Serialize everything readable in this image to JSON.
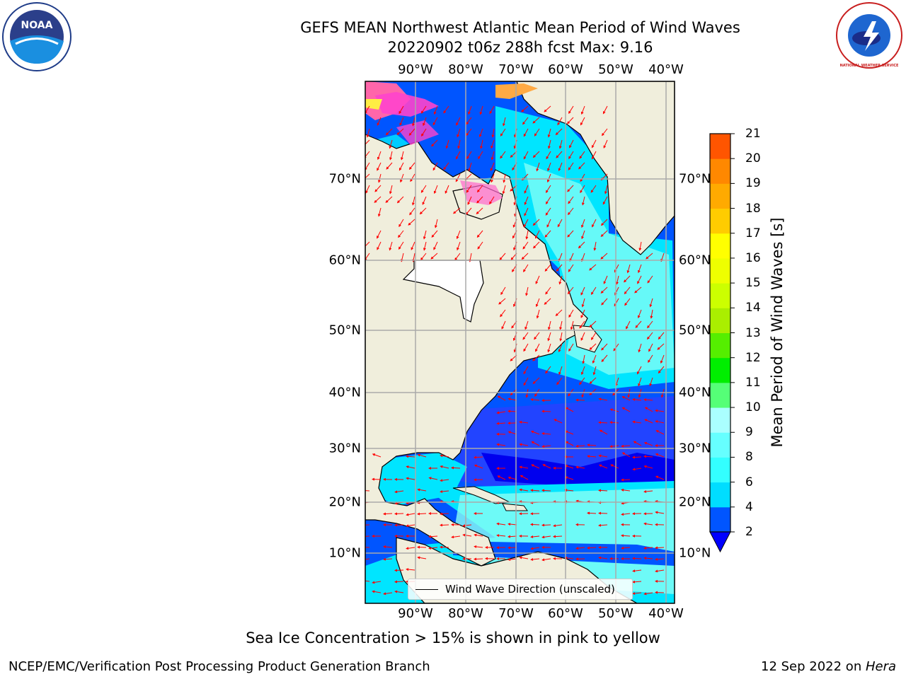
{
  "title_line1": "GEFS MEAN Northwest Atlantic Mean Period of Wind Waves",
  "title_line2": "20220902 t06z 288h fcst   Max: 9.16",
  "caption": "Sea Ice Concentration > 15% is shown in pink to yellow",
  "footer_left": "NCEP/EMC/Verification Post Processing Product Generation Branch",
  "footer_right_date": "12 Sep 2022 on ",
  "footer_right_machine": "Hera",
  "legend_label": "Wind Wave Direction (unscaled)",
  "colorbar": {
    "label": "Mean Period of Wind Waves [s]",
    "ticks": [
      "2",
      "4",
      "6",
      "8",
      "9",
      "10",
      "11",
      "12",
      "13",
      "14",
      "15",
      "16",
      "17",
      "18",
      "19",
      "20",
      "21"
    ],
    "colors": [
      "#0055ff",
      "#00ddff",
      "#33ffff",
      "#66ffff",
      "#aaffff",
      "#55ff77",
      "#00ee00",
      "#55ee00",
      "#aaee00",
      "#ccff00",
      "#eeff00",
      "#ffff00",
      "#ffcc00",
      "#ffaa00",
      "#ff8800",
      "#ff5500",
      "#ff2200",
      "#ff0000"
    ],
    "extend_color": "#0000ff"
  },
  "map": {
    "lon_labels": [
      "90°W",
      "80°W",
      "70°W",
      "60°W",
      "50°W",
      "40°W"
    ],
    "lat_labels": [
      "70°N",
      "60°N",
      "50°N",
      "40°N",
      "30°N",
      "20°N",
      "10°N"
    ],
    "land_color": "#f0eedc",
    "ocean_colors": [
      "#0000ee",
      "#0055ff",
      "#00e5ff",
      "#88fff5"
    ],
    "arrow_color": "#ff0000",
    "ice_colors": [
      "#ff44cc",
      "#ff66aa",
      "#ffaa44",
      "#ffee44"
    ]
  },
  "logos": {
    "noaa_text": "NOAA",
    "nws_text": "NATIONAL WEATHER SERVICE"
  }
}
